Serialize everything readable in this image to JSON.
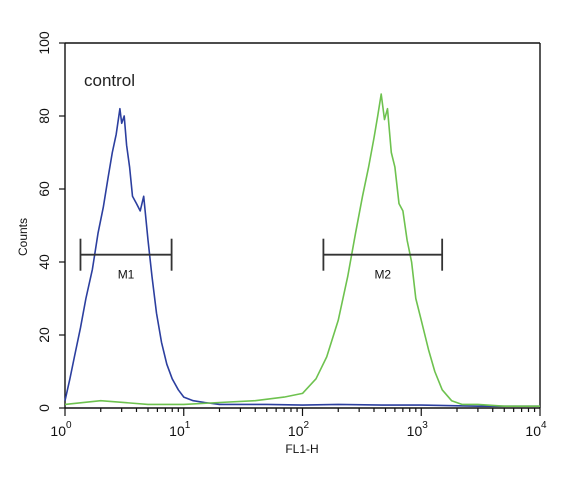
{
  "chart_data": {
    "type": "line",
    "title": "",
    "xlabel": "FL1-H",
    "ylabel": "Counts",
    "x_scale": "log",
    "xlim": [
      1,
      10000
    ],
    "ylim": [
      0,
      100
    ],
    "x_ticks": [
      1,
      10,
      100,
      1000,
      10000
    ],
    "x_tick_labels": [
      {
        "base": "10",
        "exp": "0"
      },
      {
        "base": "10",
        "exp": "1"
      },
      {
        "base": "10",
        "exp": "2"
      },
      {
        "base": "10",
        "exp": "3"
      },
      {
        "base": "10",
        "exp": "4"
      }
    ],
    "y_ticks": [
      0,
      20,
      40,
      60,
      80,
      100
    ],
    "y_tick_labels": [
      "0",
      "20",
      "40",
      "60",
      "80",
      "100"
    ],
    "annotation": "control",
    "grid": false,
    "gates": [
      {
        "label": "M1",
        "x_start": 1.35,
        "x_end": 7.9,
        "y": 42
      },
      {
        "label": "M2",
        "x_start": 150,
        "x_end": 1500,
        "y": 42
      }
    ],
    "series": [
      {
        "color": "#2c3f9f",
        "x": [
          1,
          1.1,
          1.2,
          1.35,
          1.5,
          1.7,
          1.9,
          2.1,
          2.3,
          2.5,
          2.7,
          2.9,
          3.0,
          3.15,
          3.3,
          3.5,
          3.7,
          4.0,
          4.3,
          4.6,
          5.0,
          5.4,
          5.9,
          6.5,
          7.2,
          8.0,
          9.0,
          10,
          12,
          15,
          20,
          30,
          50,
          100,
          200,
          500,
          1000,
          3000,
          10000
        ],
        "y": [
          2,
          8,
          14,
          22,
          30,
          38,
          48,
          55,
          63,
          70,
          75,
          82,
          78,
          80,
          72,
          66,
          58,
          56,
          54,
          58,
          46,
          36,
          26,
          18,
          12,
          8,
          5,
          3,
          2,
          1.5,
          1,
          1,
          1,
          0.8,
          1,
          0.8,
          0.8,
          0.5,
          0.5
        ]
      },
      {
        "color": "#6ec24f",
        "x": [
          1,
          2,
          5,
          10,
          20,
          40,
          70,
          100,
          130,
          160,
          200,
          240,
          280,
          320,
          360,
          400,
          430,
          460,
          490,
          520,
          560,
          600,
          650,
          700,
          760,
          830,
          900,
          1000,
          1150,
          1300,
          1500,
          1800,
          2200,
          3000,
          5000,
          10000
        ],
        "y": [
          1,
          2,
          1,
          1,
          1.5,
          2,
          3,
          4,
          8,
          14,
          24,
          36,
          48,
          58,
          66,
          74,
          80,
          86,
          79,
          82,
          70,
          66,
          56,
          54,
          46,
          40,
          30,
          24,
          16,
          10,
          5,
          2,
          1,
          1,
          0.5,
          0.5
        ]
      }
    ]
  }
}
